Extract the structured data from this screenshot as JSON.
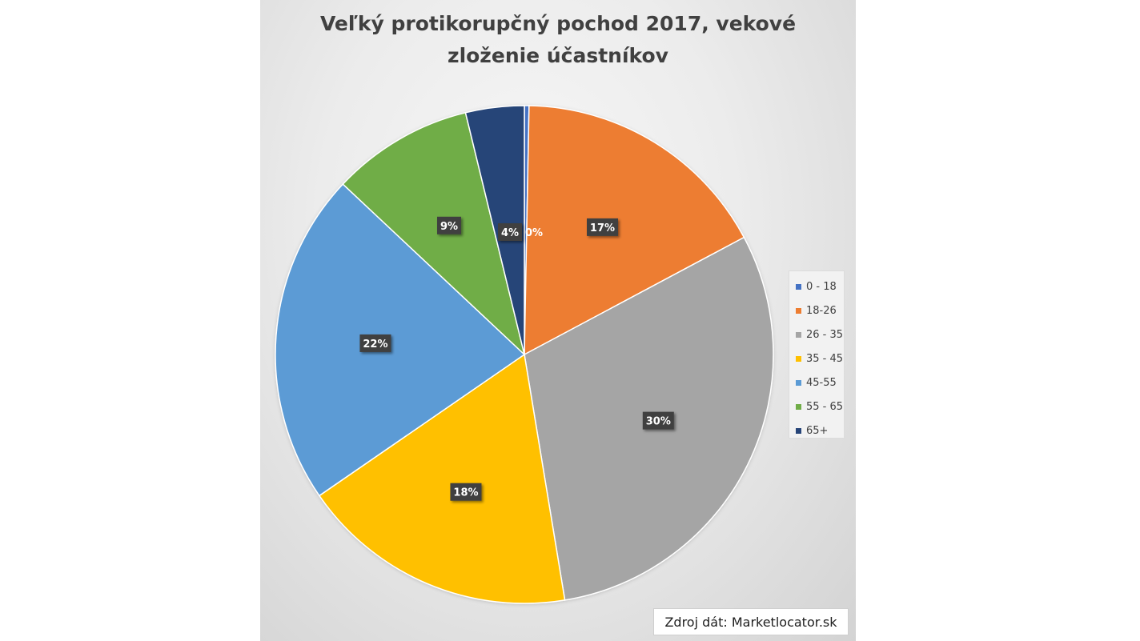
{
  "chart_data": {
    "type": "pie",
    "title_lines": [
      "Veľký protikorupčný pochod 2017, vekové",
      "zloženie účastníkov"
    ],
    "slices": [
      {
        "label": "0 - 18",
        "value": 0.3,
        "data_label": "0%",
        "color": "#4472c4"
      },
      {
        "label": "18-26",
        "value": 16.9,
        "data_label": "17%",
        "color": "#ed7d31"
      },
      {
        "label": "26 - 35",
        "value": 30.2,
        "data_label": "30%",
        "color": "#a5a5a5"
      },
      {
        "label": "35 - 45",
        "value": 18.0,
        "data_label": "18%",
        "color": "#ffc000"
      },
      {
        "label": "45-55",
        "value": 21.6,
        "data_label": "22%",
        "color": "#5b9bd5"
      },
      {
        "label": "55 - 65",
        "value": 9.2,
        "data_label": "9%",
        "color": "#70ad47"
      },
      {
        "label": "65+",
        "value": 3.8,
        "data_label": "4%",
        "color": "#264478"
      }
    ],
    "legend_position": "right"
  },
  "source_text": "Zdroj dát: Marketlocator.sk"
}
